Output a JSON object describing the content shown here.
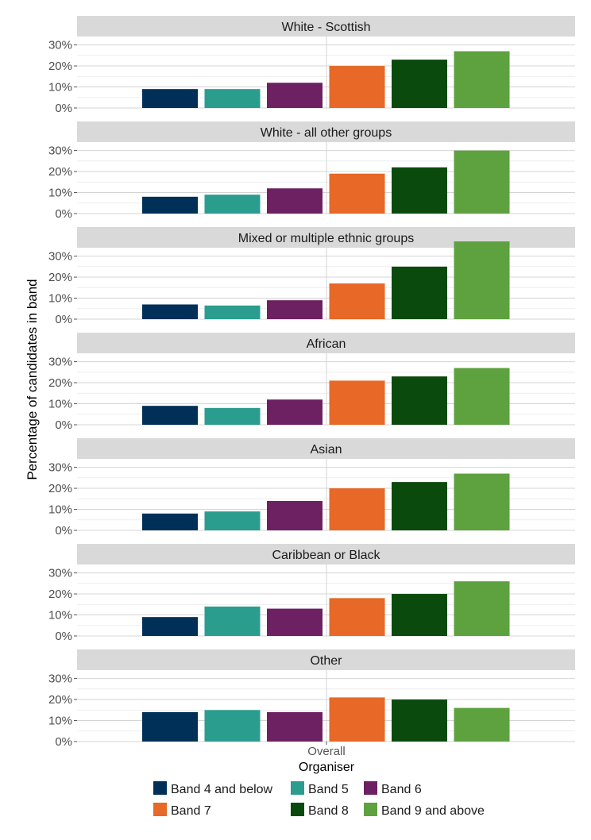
{
  "chart_data": {
    "type": "bar",
    "ylabel": "Percentage of candidates in band",
    "xlabel": "Organiser",
    "x_category": "Overall",
    "ylim": [
      0,
      34
    ],
    "yticks": [
      0,
      10,
      20,
      30
    ],
    "ytick_labels": [
      "0%",
      "10%",
      "20%",
      "30%"
    ],
    "grid": true,
    "legend_position": "bottom",
    "series": [
      {
        "name": "Band 4 and below",
        "color": "#003057"
      },
      {
        "name": "Band 5",
        "color": "#2a9d8f"
      },
      {
        "name": "Band 6",
        "color": "#6d2062"
      },
      {
        "name": "Band 7",
        "color": "#e76827"
      },
      {
        "name": "Band 8",
        "color": "#0b4a0d"
      },
      {
        "name": "Band 9 and above",
        "color": "#5ea13f"
      }
    ],
    "panels": [
      {
        "title": "White - Scottish",
        "values": [
          9,
          9,
          12,
          20,
          23,
          27
        ]
      },
      {
        "title": "White - all other groups",
        "values": [
          8,
          9,
          12,
          19,
          22,
          30
        ]
      },
      {
        "title": "Mixed or multiple ethnic groups",
        "values": [
          7,
          6.5,
          9,
          17,
          25,
          37
        ]
      },
      {
        "title": "African",
        "values": [
          9,
          8,
          12,
          21,
          23,
          27
        ]
      },
      {
        "title": "Asian",
        "values": [
          8,
          9,
          14,
          20,
          23,
          27
        ]
      },
      {
        "title": "Caribbean or Black",
        "values": [
          9,
          14,
          13,
          18,
          20,
          26
        ]
      },
      {
        "title": "Other",
        "values": [
          14,
          15,
          14,
          21,
          20,
          16
        ]
      }
    ]
  }
}
